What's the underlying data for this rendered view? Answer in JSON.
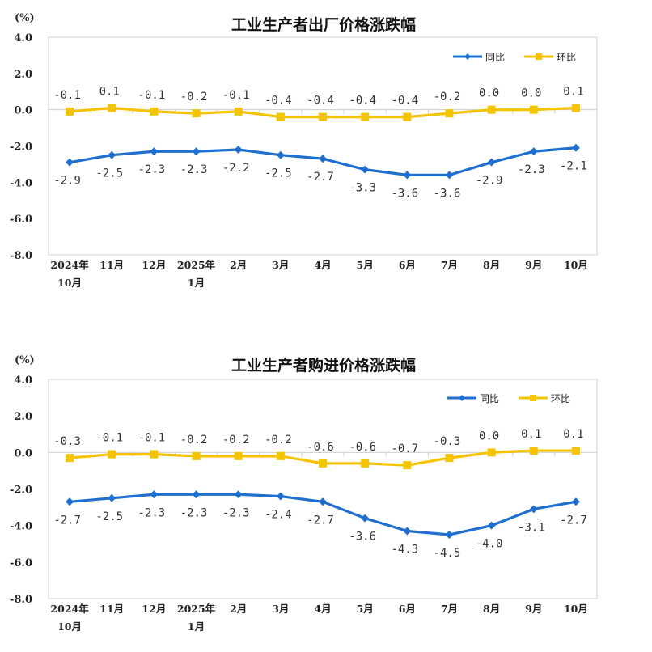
{
  "chart_data": [
    {
      "type": "line",
      "title": "工业生产者出厂价格涨跌幅",
      "ylabel": "(%)",
      "ylim": [
        -8.0,
        4.0
      ],
      "yticks": [
        "4.0",
        "2.0",
        "0.0",
        "-2.0",
        "-4.0",
        "-6.0",
        "-8.0"
      ],
      "categories": [
        [
          "2024年",
          "10月"
        ],
        [
          "11月"
        ],
        [
          "12月"
        ],
        [
          "2025年",
          "1月"
        ],
        [
          "2月"
        ],
        [
          "3月"
        ],
        [
          "4月"
        ],
        [
          "5月"
        ],
        [
          "6月"
        ],
        [
          "7月"
        ],
        [
          "8月"
        ],
        [
          "9月"
        ],
        [
          "10月"
        ]
      ],
      "legend_position": "top-right",
      "grid": false,
      "series": [
        {
          "name": "同比",
          "color": "#1F6FD1",
          "marker": "diamond",
          "values": [
            -2.9,
            -2.5,
            -2.3,
            -2.3,
            -2.2,
            -2.5,
            -2.7,
            -3.3,
            -3.6,
            -3.6,
            -2.9,
            -2.3,
            -2.1
          ],
          "labels": [
            "-2.9",
            "-2.5",
            "-2.3",
            "-2.3",
            "-2.2",
            "-2.5",
            "-2.7",
            "-3.3",
            "-3.6",
            "-3.6",
            "-2.9",
            "-2.3",
            "-2.1"
          ]
        },
        {
          "name": "环比",
          "color": "#F5C400",
          "marker": "square",
          "values": [
            -0.1,
            0.1,
            -0.1,
            -0.2,
            -0.1,
            -0.4,
            -0.4,
            -0.4,
            -0.4,
            -0.2,
            0.0,
            0.0,
            0.1
          ],
          "labels": [
            "-0.1",
            "0.1",
            "-0.1",
            "-0.2",
            "-0.1",
            "-0.4",
            "-0.4",
            "-0.4",
            "-0.4",
            "-0.2",
            "0.0",
            "0.0",
            "0.1"
          ]
        }
      ]
    },
    {
      "type": "line",
      "title": "工业生产者购进价格涨跌幅",
      "ylabel": "(%)",
      "ylim": [
        -8.0,
        4.0
      ],
      "yticks": [
        "4.0",
        "2.0",
        "0.0",
        "-2.0",
        "-4.0",
        "-6.0",
        "-8.0"
      ],
      "categories": [
        [
          "2024年",
          "10月"
        ],
        [
          "11月"
        ],
        [
          "12月"
        ],
        [
          "2025年",
          "1月"
        ],
        [
          "2月"
        ],
        [
          "3月"
        ],
        [
          "4月"
        ],
        [
          "5月"
        ],
        [
          "6月"
        ],
        [
          "7月"
        ],
        [
          "8月"
        ],
        [
          "9月"
        ],
        [
          "10月"
        ]
      ],
      "legend_position": "top-right",
      "grid": false,
      "series": [
        {
          "name": "同比",
          "color": "#1F6FD1",
          "marker": "diamond",
          "values": [
            -2.7,
            -2.5,
            -2.3,
            -2.3,
            -2.3,
            -2.4,
            -2.7,
            -3.6,
            -4.3,
            -4.5,
            -4.0,
            -3.1,
            -2.7
          ],
          "labels": [
            "-2.7",
            "-2.5",
            "-2.3",
            "-2.3",
            "-2.3",
            "-2.4",
            "-2.7",
            "-3.6",
            "-4.3",
            "-4.5",
            "-4.0",
            "-3.1",
            "-2.7"
          ]
        },
        {
          "name": "环比",
          "color": "#F5C400",
          "marker": "square",
          "values": [
            -0.3,
            -0.1,
            -0.1,
            -0.2,
            -0.2,
            -0.2,
            -0.6,
            -0.6,
            -0.7,
            -0.3,
            0.0,
            0.1,
            0.1
          ],
          "labels": [
            "-0.3",
            "-0.1",
            "-0.1",
            "-0.2",
            "-0.2",
            "-0.2",
            "-0.6",
            "-0.6",
            "-0.7",
            "-0.3",
            "0.0",
            "0.1",
            "0.1"
          ]
        }
      ]
    }
  ]
}
